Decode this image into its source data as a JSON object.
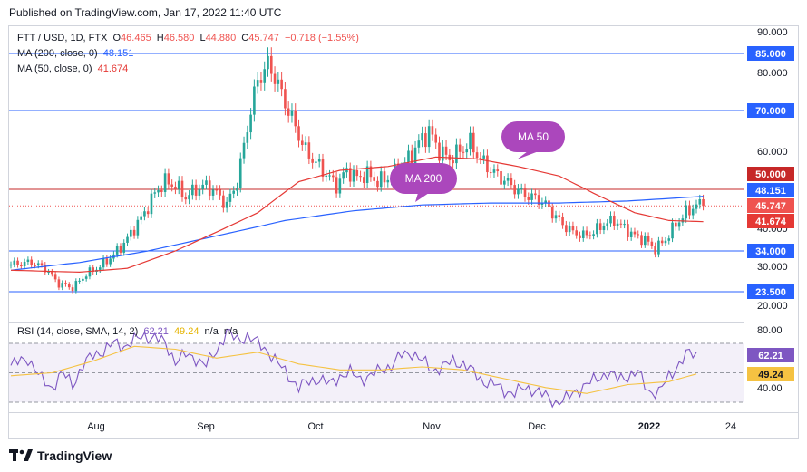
{
  "header": {
    "published": "Published on TradingView.com, Jan 17, 2022 11:40 UTC"
  },
  "legend": {
    "symbol": "FTT / USD, 1D, FTX",
    "ohlc": [
      {
        "k": "O",
        "v": "46.465"
      },
      {
        "k": "H",
        "v": "46.580"
      },
      {
        "k": "L",
        "v": "44.880"
      },
      {
        "k": "C",
        "v": "45.747"
      }
    ],
    "change": "−0.718 (−1.55%)",
    "ma200_label": "MA (200, close, 0)",
    "ma200_value": "48.151",
    "ma50_label": "MA (50, close, 0)",
    "ma50_value": "41.674",
    "rsi_label": "RSI (14, close, SMA, 14, 2)",
    "rsi_value": "62.21",
    "rsi_ma_value": "49.24",
    "na1": "n/a",
    "na2": "n/a"
  },
  "footer": {
    "brand": "TradingView"
  },
  "colors": {
    "up": "#26a69a",
    "down": "#ef5350",
    "ma200": "#2962ff",
    "ma50": "#e53935",
    "level_blue": "#2962ff",
    "level_red": "#c62828",
    "rsi": "#7e57c2",
    "rsi_ma": "#f5c242",
    "callout": "#ab47bc",
    "last": "#ef5350"
  },
  "chart_data": {
    "type": "candlestick",
    "y_axis_ticks": [
      "90.000",
      "80.000",
      "60.000",
      "40.000",
      "30.000",
      "20.000"
    ],
    "ylim": [
      20,
      90
    ],
    "x_axis_ticks": [
      "Aug",
      "Sep",
      "Oct",
      "Nov",
      "Dec",
      "2022",
      "24"
    ],
    "price_badges": [
      {
        "label": "85.000",
        "kind": "blue"
      },
      {
        "label": "70.000",
        "kind": "blue"
      },
      {
        "label": "50.000",
        "kind": "red"
      },
      {
        "label": "48.151",
        "kind": "ma200"
      },
      {
        "label": "45.747",
        "kind": "last"
      },
      {
        "label": "41.674",
        "kind": "ma50"
      },
      {
        "label": "34.000",
        "kind": "blue"
      },
      {
        "label": "23.500",
        "kind": "blue"
      }
    ],
    "horizontal_levels": [
      {
        "value": 85,
        "color": "blue"
      },
      {
        "value": 70,
        "color": "blue"
      },
      {
        "value": 50,
        "color": "red"
      },
      {
        "value": 34,
        "color": "blue"
      },
      {
        "value": 23.5,
        "color": "blue"
      }
    ],
    "callouts": [
      {
        "label": "MA 50"
      },
      {
        "label": "MA 200"
      }
    ],
    "anchors": [
      [
        0,
        30.5
      ],
      [
        6,
        31
      ],
      [
        10,
        29.5
      ],
      [
        14,
        25.5
      ],
      [
        18,
        24.5
      ],
      [
        22,
        28
      ],
      [
        26,
        30
      ],
      [
        30,
        33
      ],
      [
        33,
        36
      ],
      [
        36,
        40
      ],
      [
        39,
        44
      ],
      [
        42,
        49
      ],
      [
        45,
        52
      ],
      [
        48,
        51
      ],
      [
        51,
        48
      ],
      [
        54,
        50
      ],
      [
        57,
        51
      ],
      [
        60,
        49
      ],
      [
        63,
        46
      ],
      [
        66,
        52
      ],
      [
        69,
        66
      ],
      [
        72,
        78
      ],
      [
        75,
        82
      ],
      [
        77,
        79
      ],
      [
        80,
        72
      ],
      [
        83,
        66
      ],
      [
        86,
        60
      ],
      [
        89,
        57
      ],
      [
        92,
        54
      ],
      [
        95,
        51
      ],
      [
        98,
        55
      ],
      [
        101,
        53
      ],
      [
        104,
        54
      ],
      [
        107,
        52
      ],
      [
        110,
        53
      ],
      [
        113,
        55
      ],
      [
        116,
        58
      ],
      [
        119,
        62
      ],
      [
        122,
        65
      ],
      [
        125,
        60
      ],
      [
        128,
        58
      ],
      [
        131,
        60
      ],
      [
        134,
        62
      ],
      [
        137,
        58
      ],
      [
        140,
        55
      ],
      [
        143,
        53
      ],
      [
        146,
        51
      ],
      [
        149,
        49
      ],
      [
        152,
        48
      ],
      [
        155,
        47
      ],
      [
        158,
        44
      ],
      [
        161,
        41
      ],
      [
        164,
        39
      ],
      [
        167,
        38
      ],
      [
        170,
        39
      ],
      [
        173,
        41
      ],
      [
        176,
        42
      ],
      [
        179,
        40
      ],
      [
        182,
        38
      ],
      [
        185,
        37
      ],
      [
        188,
        34.5
      ],
      [
        191,
        37
      ],
      [
        194,
        41
      ],
      [
        197,
        44
      ],
      [
        200,
        46
      ],
      [
        202,
        45.7
      ]
    ],
    "ma200_anchors": [
      [
        0,
        29
      ],
      [
        20,
        31
      ],
      [
        40,
        34
      ],
      [
        60,
        38
      ],
      [
        80,
        42
      ],
      [
        100,
        44.5
      ],
      [
        120,
        46
      ],
      [
        140,
        46.5
      ],
      [
        160,
        46.5
      ],
      [
        180,
        47
      ],
      [
        202,
        48.2
      ]
    ],
    "ma50_anchors": [
      [
        0,
        29
      ],
      [
        20,
        28.5
      ],
      [
        34,
        29.5
      ],
      [
        48,
        34
      ],
      [
        60,
        39
      ],
      [
        72,
        44
      ],
      [
        84,
        52
      ],
      [
        96,
        55
      ],
      [
        110,
        56
      ],
      [
        124,
        58.5
      ],
      [
        136,
        58
      ],
      [
        148,
        56
      ],
      [
        160,
        53.5
      ],
      [
        170,
        49
      ],
      [
        182,
        44
      ],
      [
        192,
        42
      ],
      [
        202,
        41.7
      ]
    ],
    "rsi_ticks": [
      "80.00",
      "40.00"
    ],
    "rsi_anchors": [
      [
        0,
        55
      ],
      [
        5,
        60
      ],
      [
        9,
        45
      ],
      [
        12,
        40
      ],
      [
        15,
        50
      ],
      [
        18,
        42
      ],
      [
        21,
        55
      ],
      [
        24,
        62
      ],
      [
        27,
        65
      ],
      [
        30,
        70
      ],
      [
        33,
        68
      ],
      [
        36,
        72
      ],
      [
        39,
        75
      ],
      [
        42,
        74
      ],
      [
        45,
        70
      ],
      [
        48,
        58
      ],
      [
        51,
        62
      ],
      [
        54,
        60
      ],
      [
        57,
        55
      ],
      [
        60,
        65
      ],
      [
        63,
        78
      ],
      [
        66,
        72
      ],
      [
        69,
        75
      ],
      [
        72,
        70
      ],
      [
        75,
        65
      ],
      [
        78,
        56
      ],
      [
        81,
        48
      ],
      [
        84,
        40
      ],
      [
        87,
        44
      ],
      [
        90,
        46
      ],
      [
        93,
        42
      ],
      [
        96,
        48
      ],
      [
        99,
        50
      ],
      [
        102,
        46
      ],
      [
        105,
        48
      ],
      [
        108,
        52
      ],
      [
        111,
        55
      ],
      [
        114,
        62
      ],
      [
        117,
        64
      ],
      [
        120,
        58
      ],
      [
        123,
        52
      ],
      [
        126,
        54
      ],
      [
        129,
        58
      ],
      [
        132,
        56
      ],
      [
        135,
        50
      ],
      [
        138,
        44
      ],
      [
        141,
        42
      ],
      [
        144,
        38
      ],
      [
        147,
        36
      ],
      [
        150,
        40
      ],
      [
        153,
        38
      ],
      [
        156,
        34
      ],
      [
        159,
        30
      ],
      [
        162,
        32
      ],
      [
        165,
        38
      ],
      [
        168,
        42
      ],
      [
        171,
        46
      ],
      [
        174,
        50
      ],
      [
        177,
        46
      ],
      [
        180,
        48
      ],
      [
        183,
        50
      ],
      [
        186,
        38
      ],
      [
        189,
        36
      ],
      [
        192,
        48
      ],
      [
        195,
        56
      ],
      [
        198,
        64
      ],
      [
        200,
        62.2
      ]
    ],
    "rsi_ma_anchors": [
      [
        0,
        48
      ],
      [
        12,
        50
      ],
      [
        24,
        58
      ],
      [
        36,
        68
      ],
      [
        48,
        66
      ],
      [
        60,
        60
      ],
      [
        72,
        64
      ],
      [
        84,
        56
      ],
      [
        96,
        52
      ],
      [
        108,
        52
      ],
      [
        120,
        54
      ],
      [
        132,
        52
      ],
      [
        144,
        46
      ],
      [
        156,
        40
      ],
      [
        168,
        36
      ],
      [
        180,
        42
      ],
      [
        192,
        44
      ],
      [
        200,
        49.2
      ]
    ]
  }
}
